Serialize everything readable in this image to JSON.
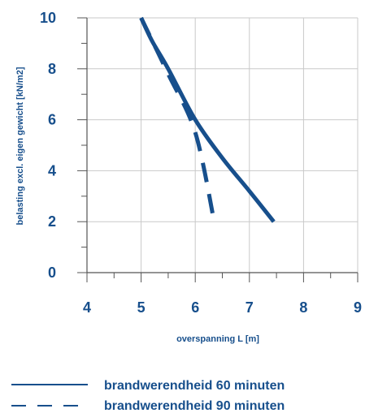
{
  "chart_data": {
    "type": "line",
    "xlabel": "overspanning L [m]",
    "ylabel": "belasting excl. eigen gewicht [kN/m2]",
    "xlim": [
      4,
      9
    ],
    "ylim": [
      0,
      10
    ],
    "x_ticks": [
      "4",
      "5",
      "6",
      "7",
      "8",
      "9"
    ],
    "y_ticks": [
      "0",
      "2",
      "4",
      "6",
      "8",
      "10"
    ],
    "grid": true,
    "line_color": "#174f8c",
    "legend_position": "bottom",
    "series": [
      {
        "name": "brandwerendheid 60 minuten",
        "style": "solid",
        "points": [
          {
            "x": 5.0,
            "y": 10.0
          },
          {
            "x": 5.2,
            "y": 9.1
          },
          {
            "x": 5.5,
            "y": 8.0
          },
          {
            "x": 6.0,
            "y": 6.0
          },
          {
            "x": 6.5,
            "y": 4.5
          },
          {
            "x": 7.0,
            "y": 3.2
          },
          {
            "x": 7.45,
            "y": 2.0
          }
        ]
      },
      {
        "name": "brandwerendheid 90 minuten",
        "style": "dashed",
        "points": [
          {
            "x": 5.0,
            "y": 10.0
          },
          {
            "x": 5.5,
            "y": 7.8
          },
          {
            "x": 6.0,
            "y": 5.5
          },
          {
            "x": 6.35,
            "y": 2.0
          }
        ]
      }
    ]
  }
}
